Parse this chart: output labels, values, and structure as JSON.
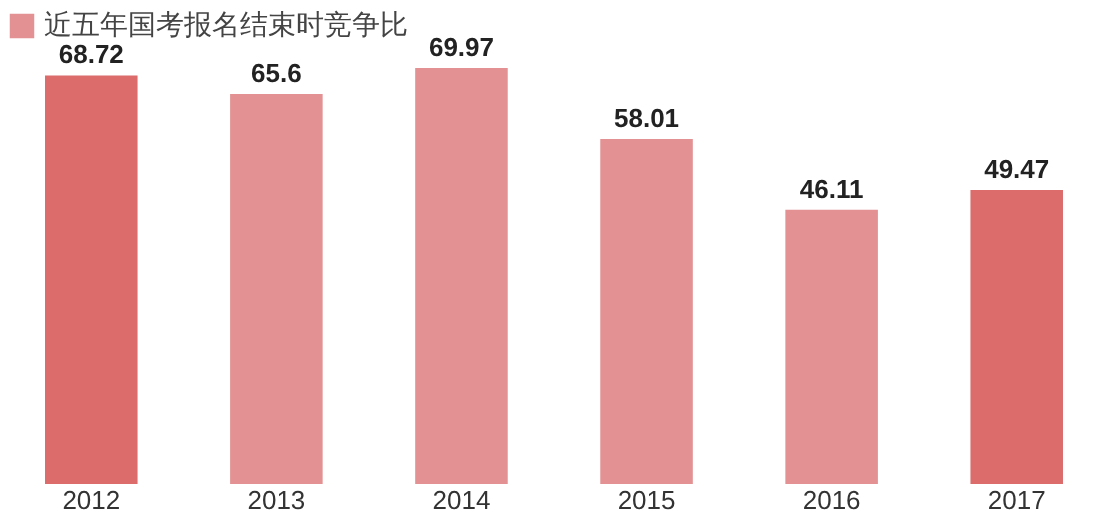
{
  "chart_data": {
    "type": "bar",
    "categories": [
      "2012",
      "2013",
      "2014",
      "2015",
      "2016",
      "2017"
    ],
    "series": [
      {
        "name": "近五年国考报名结束时竞争比",
        "color": "#e39192",
        "values": [
          68.72,
          65.6,
          69.97,
          58.01,
          46.11,
          49.47
        ],
        "colors": [
          "#dc6b6c",
          "#e39192",
          "#e39192",
          "#e39192",
          "#e39192",
          "#dc6b6c"
        ]
      }
    ],
    "data_labels": true,
    "legend": "top",
    "grid": false
  }
}
